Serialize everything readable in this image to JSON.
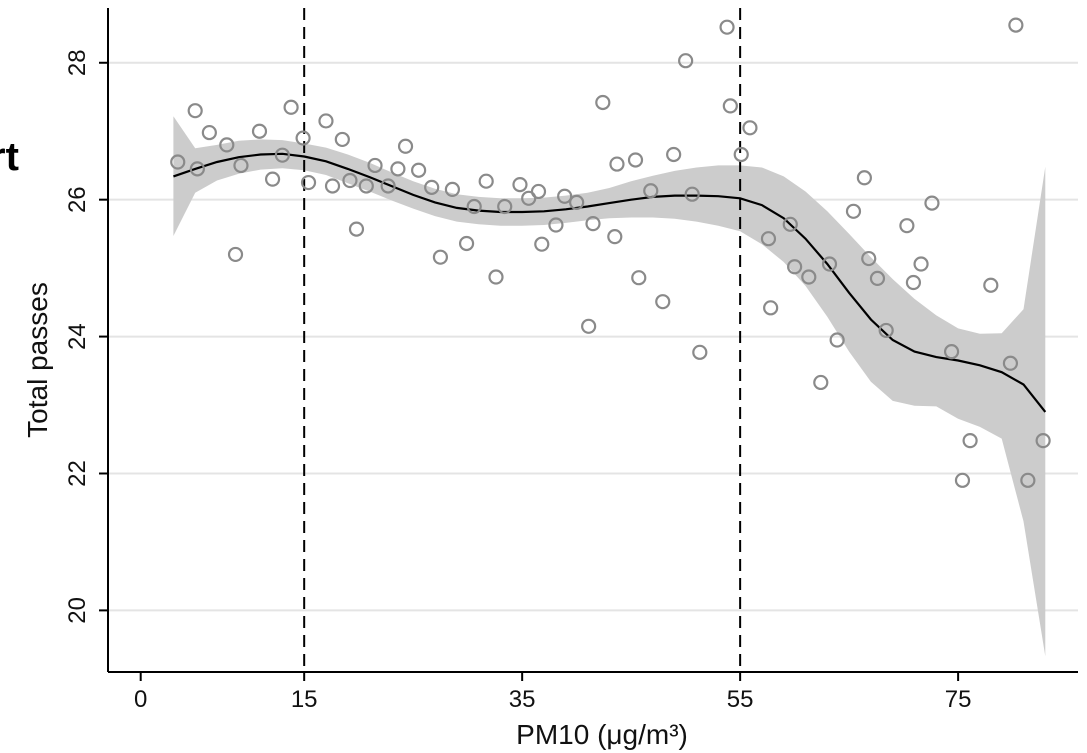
{
  "edge_text": "rt",
  "chart_data": {
    "type": "scatter",
    "title": "",
    "xlabel": "PM10 (μg/m³)",
    "ylabel": "Total passes",
    "xlim": [
      -3,
      86
    ],
    "ylim": [
      19.1,
      28.8
    ],
    "xticks": [
      0,
      15,
      35,
      55,
      75
    ],
    "xtick_labels": [
      "0",
      "15",
      "35",
      "55",
      "75"
    ],
    "yticks": [
      20,
      22,
      24,
      26,
      28
    ],
    "ytick_labels": [
      "20",
      "22",
      "24",
      "26",
      "28"
    ],
    "grid": "horizontal",
    "legend": "none",
    "reference_lines_x": [
      15,
      55
    ],
    "colors": {
      "points": "#8a8a8a",
      "band": "#cccccc",
      "line": "#000000",
      "grid": "#e4e4e4"
    },
    "points": {
      "x": [
        3.4,
        5.0,
        5.2,
        6.3,
        7.9,
        8.7,
        9.2,
        10.9,
        12.1,
        13.0,
        13.8,
        14.9,
        15.4,
        17.0,
        17.6,
        18.5,
        19.2,
        19.8,
        20.7,
        21.5,
        22.7,
        23.6,
        24.3,
        25.5,
        26.7,
        27.5,
        28.6,
        29.9,
        30.6,
        31.7,
        32.6,
        33.4,
        34.8,
        35.6,
        36.5,
        36.8,
        38.1,
        38.9,
        40.0,
        41.1,
        41.5,
        42.4,
        43.5,
        43.7,
        45.4,
        45.7,
        46.8,
        47.9,
        48.9,
        50.0,
        50.6,
        51.3,
        53.8,
        54.1,
        55.1,
        55.9,
        57.6,
        57.8,
        59.6,
        60.0,
        61.3,
        62.4,
        63.2,
        63.9,
        65.4,
        66.4,
        66.8,
        67.6,
        68.4,
        70.3,
        70.9,
        71.6,
        72.6,
        74.4,
        75.4,
        76.1,
        78.0,
        79.8,
        80.3,
        81.4,
        82.8
      ],
      "y": [
        26.55,
        27.3,
        26.45,
        26.98,
        26.8,
        25.2,
        26.5,
        27.0,
        26.3,
        26.65,
        27.35,
        26.9,
        26.25,
        27.15,
        26.2,
        26.88,
        26.28,
        25.57,
        26.2,
        26.5,
        26.2,
        26.45,
        26.78,
        26.43,
        26.18,
        25.16,
        26.15,
        25.36,
        25.9,
        26.27,
        24.87,
        25.9,
        26.22,
        26.02,
        26.12,
        25.35,
        25.63,
        26.05,
        25.96,
        24.15,
        25.65,
        27.42,
        25.46,
        26.52,
        26.58,
        24.86,
        26.13,
        24.51,
        26.66,
        28.03,
        26.08,
        23.77,
        28.52,
        27.37,
        26.66,
        27.05,
        25.43,
        24.42,
        25.64,
        25.02,
        24.87,
        23.33,
        25.06,
        23.95,
        25.83,
        26.32,
        25.14,
        24.85,
        24.09,
        25.62,
        24.79,
        25.06,
        25.95,
        23.78,
        21.9,
        22.48,
        24.75,
        23.61,
        28.55,
        21.9,
        22.48
      ],
      "comment": ""
    },
    "fit_line": {
      "x": [
        3,
        5,
        7,
        9,
        11,
        13,
        15,
        17,
        19,
        21,
        23,
        25,
        27,
        29,
        31,
        33,
        35,
        37,
        39,
        41,
        43,
        45,
        47,
        49,
        51,
        53,
        55,
        57,
        59,
        61,
        63,
        65,
        67,
        69,
        71,
        73,
        75,
        77,
        79,
        81,
        83
      ],
      "y": [
        26.34,
        26.45,
        26.55,
        26.62,
        26.66,
        26.67,
        26.63,
        26.56,
        26.45,
        26.33,
        26.2,
        26.07,
        25.96,
        25.88,
        25.84,
        25.82,
        25.82,
        25.83,
        25.86,
        25.9,
        25.95,
        26.0,
        26.04,
        26.06,
        26.06,
        26.05,
        26.02,
        25.92,
        25.73,
        25.43,
        25.06,
        24.64,
        24.25,
        23.95,
        23.78,
        23.7,
        23.65,
        23.58,
        23.48,
        23.3,
        22.9
      ]
    },
    "confidence_band": {
      "x": [
        3,
        5,
        7,
        9,
        11,
        13,
        15,
        17,
        19,
        21,
        23,
        25,
        27,
        29,
        31,
        33,
        35,
        37,
        39,
        41,
        43,
        45,
        47,
        49,
        51,
        53,
        55,
        57,
        59,
        61,
        63,
        65,
        67,
        69,
        71,
        73,
        75,
        77,
        79,
        81,
        83
      ],
      "upper": [
        27.22,
        26.75,
        26.8,
        26.86,
        26.88,
        26.87,
        26.82,
        26.76,
        26.66,
        26.54,
        26.4,
        26.27,
        26.16,
        26.08,
        26.04,
        26.02,
        26.02,
        26.03,
        26.06,
        26.1,
        26.17,
        26.27,
        26.35,
        26.42,
        26.47,
        26.5,
        26.5,
        26.47,
        26.34,
        26.12,
        25.83,
        25.5,
        25.16,
        24.84,
        24.55,
        24.31,
        24.12,
        24.04,
        24.05,
        24.4,
        26.48
      ],
      "lower": [
        25.47,
        26.1,
        26.28,
        26.38,
        26.44,
        26.46,
        26.43,
        26.36,
        26.24,
        26.12,
        25.99,
        25.87,
        25.76,
        25.68,
        25.64,
        25.62,
        25.62,
        25.63,
        25.66,
        25.7,
        25.73,
        25.74,
        25.74,
        25.72,
        25.68,
        25.62,
        25.54,
        25.35,
        25.09,
        24.74,
        24.29,
        23.78,
        23.34,
        23.06,
        22.99,
        22.98,
        22.8,
        22.68,
        22.51,
        21.3,
        19.33
      ]
    }
  }
}
